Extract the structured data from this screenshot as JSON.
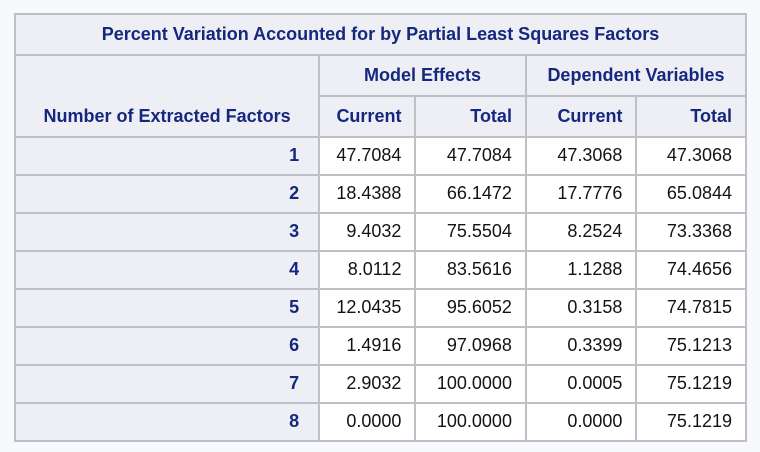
{
  "colors": {
    "page_background": "#f7f9fc",
    "header_text": "#16277e",
    "data_text": "#131313",
    "header_background": "#edeff5",
    "cell_background": "#ffffff",
    "outer_border": "#a7a9ae",
    "inner_border": "#bec0c5"
  },
  "table": {
    "title": "Percent Variation Accounted for by Partial Least Squares Factors",
    "stub_header": "Number of Extracted Factors",
    "groups": [
      {
        "label": "Model Effects"
      },
      {
        "label": "Dependent Variables"
      }
    ],
    "column_headers": [
      "Current",
      "Total",
      "Current",
      "Total"
    ],
    "rows": [
      {
        "factor": "1",
        "me_current": "47.7084",
        "me_total": "47.7084",
        "dv_current": "47.3068",
        "dv_total": "47.3068"
      },
      {
        "factor": "2",
        "me_current": "18.4388",
        "me_total": "66.1472",
        "dv_current": "17.7776",
        "dv_total": "65.0844"
      },
      {
        "factor": "3",
        "me_current": "9.4032",
        "me_total": "75.5504",
        "dv_current": "8.2524",
        "dv_total": "73.3368"
      },
      {
        "factor": "4",
        "me_current": "8.0112",
        "me_total": "83.5616",
        "dv_current": "1.1288",
        "dv_total": "74.4656"
      },
      {
        "factor": "5",
        "me_current": "12.0435",
        "me_total": "95.6052",
        "dv_current": "0.3158",
        "dv_total": "74.7815"
      },
      {
        "factor": "6",
        "me_current": "1.4916",
        "me_total": "97.0968",
        "dv_current": "0.3399",
        "dv_total": "75.1213"
      },
      {
        "factor": "7",
        "me_current": "2.9032",
        "me_total": "100.0000",
        "dv_current": "0.0005",
        "dv_total": "75.1219"
      },
      {
        "factor": "8",
        "me_current": "0.0000",
        "me_total": "100.0000",
        "dv_current": "0.0000",
        "dv_total": "75.1219"
      }
    ]
  },
  "chart_data": {
    "type": "table",
    "title": "Percent Variation Accounted for by Partial Least Squares Factors",
    "row_label": "Number of Extracted Factors",
    "column_groups": [
      "Model Effects",
      "Dependent Variables"
    ],
    "columns": [
      "Model Effects Current",
      "Model Effects Total",
      "Dependent Variables Current",
      "Dependent Variables Total"
    ],
    "factors": [
      1,
      2,
      3,
      4,
      5,
      6,
      7,
      8
    ],
    "series": [
      {
        "name": "Model Effects Current",
        "values": [
          47.7084,
          18.4388,
          9.4032,
          8.0112,
          12.0435,
          1.4916,
          2.9032,
          0.0
        ]
      },
      {
        "name": "Model Effects Total",
        "values": [
          47.7084,
          66.1472,
          75.5504,
          83.5616,
          95.6052,
          97.0968,
          100.0,
          100.0
        ]
      },
      {
        "name": "Dependent Variables Current",
        "values": [
          47.3068,
          17.7776,
          8.2524,
          1.1288,
          0.3158,
          0.3399,
          0.0005,
          0.0
        ]
      },
      {
        "name": "Dependent Variables Total",
        "values": [
          47.3068,
          65.0844,
          73.3368,
          74.4656,
          74.7815,
          75.1213,
          75.1219,
          75.1219
        ]
      }
    ]
  }
}
